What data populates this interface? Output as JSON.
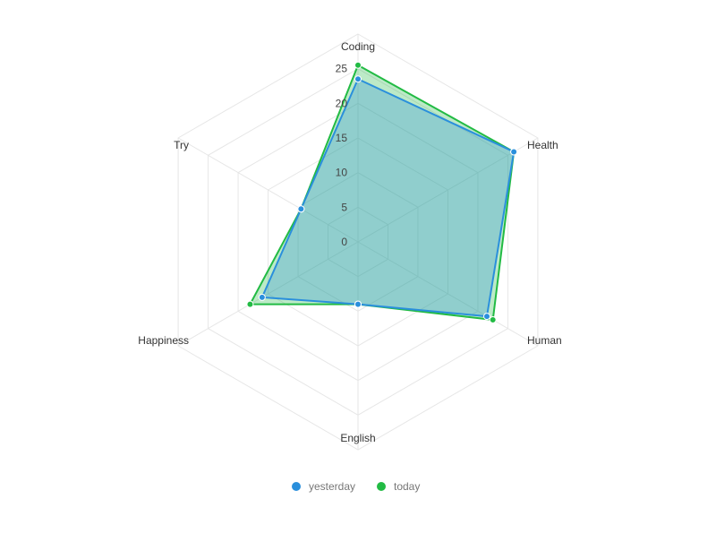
{
  "chart_data": {
    "type": "radar",
    "axes": [
      "Coding",
      "Health",
      "Human",
      "English",
      "Happiness",
      "Try"
    ],
    "ticks": [
      0,
      5,
      10,
      15,
      20,
      25
    ],
    "range": [
      0,
      30
    ],
    "grid": true,
    "legend_position": "bottom",
    "series": [
      {
        "name": "yesterday",
        "color": "#2a8fdc",
        "values": [
          23.5,
          26,
          21.5,
          9,
          16,
          9.5
        ]
      },
      {
        "name": "today",
        "color": "#22bb44",
        "values": [
          25.5,
          26,
          22.5,
          9,
          18,
          9.5
        ]
      }
    ]
  }
}
